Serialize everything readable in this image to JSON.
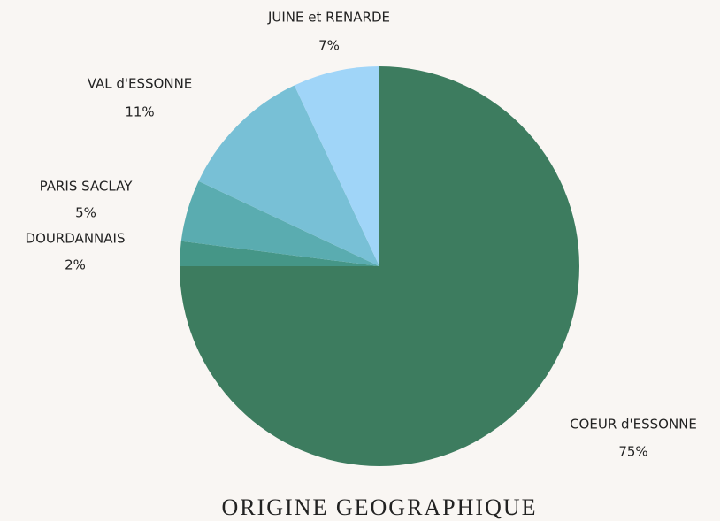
{
  "chart_data": {
    "type": "pie",
    "title": "ORIGINE GEOGRAPHIQUE",
    "categories": [
      "COEUR d'ESSONNE",
      "DOURDANNAIS",
      "PARIS SACLAY",
      "VAL d'ESSONNE",
      "JUINE et RENARDE"
    ],
    "values": [
      75,
      2,
      5,
      11,
      7
    ],
    "value_labels": [
      "75%",
      "2%",
      "5%",
      "11%",
      "7%"
    ],
    "colors": [
      "#3d7c5f",
      "#459687",
      "#5aacb0",
      "#78c0d6",
      "#a0d5f8"
    ]
  }
}
